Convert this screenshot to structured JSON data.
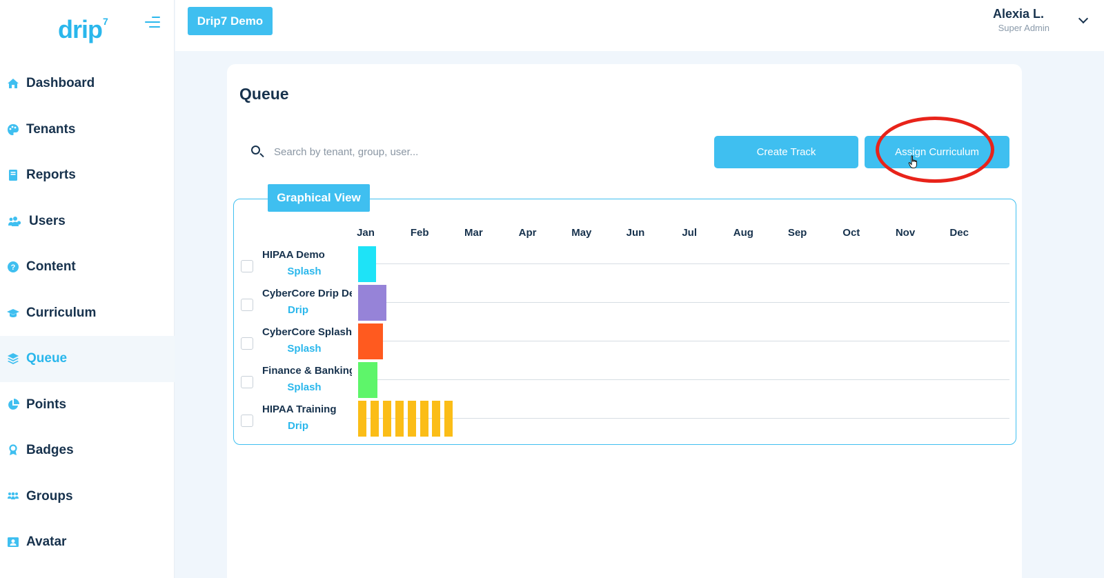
{
  "app": {
    "logo_text": "drip",
    "logo_sup": "7"
  },
  "sidebar": {
    "items": [
      {
        "label": "Dashboard",
        "icon": "home-icon"
      },
      {
        "label": "Tenants",
        "icon": "palette-icon"
      },
      {
        "label": "Reports",
        "icon": "book-icon"
      },
      {
        "label": "Users",
        "icon": "users-icon"
      },
      {
        "label": "Content",
        "icon": "question-circle-icon"
      },
      {
        "label": "Curriculum",
        "icon": "graduation-cap-icon"
      },
      {
        "label": "Queue",
        "icon": "layers-icon",
        "active": true
      },
      {
        "label": "Points",
        "icon": "pie-chart-icon"
      },
      {
        "label": "Badges",
        "icon": "award-icon"
      },
      {
        "label": "Groups",
        "icon": "group-icon"
      },
      {
        "label": "Avatar",
        "icon": "portrait-icon"
      }
    ]
  },
  "header": {
    "tenant_button": "Drip7 Demo",
    "user_name": "Alexia L.",
    "user_role": "Super Admin"
  },
  "main": {
    "title": "Queue",
    "search_placeholder": "Search by tenant, group, user...",
    "create_track_label": "Create Track",
    "assign_curriculum_label": "Assign Curriculum"
  },
  "graphical_view": {
    "tab_label": "Graphical View",
    "months": [
      "Jan",
      "Feb",
      "Mar",
      "Apr",
      "May",
      "Jun",
      "Jul",
      "Aug",
      "Sep",
      "Oct",
      "Nov",
      "Dec"
    ],
    "tracks": [
      {
        "name": "HIPAA Demo",
        "type": "Splash",
        "color": "#1ee3f7"
      },
      {
        "name": "CyberCore Drip Demo",
        "type": "Drip",
        "color": "#9683d8"
      },
      {
        "name": "CyberCore Splash",
        "type": "Splash",
        "color": "#ff5a1f"
      },
      {
        "name": "Finance & Banking",
        "type": "Splash",
        "color": "#5ef56a"
      },
      {
        "name": "HIPAA Training",
        "type": "Drip",
        "color": "#fbbd17"
      }
    ]
  },
  "colors": {
    "accent": "#3fbff0",
    "highlight": "#e8231a",
    "text_dark": "#17324d"
  }
}
